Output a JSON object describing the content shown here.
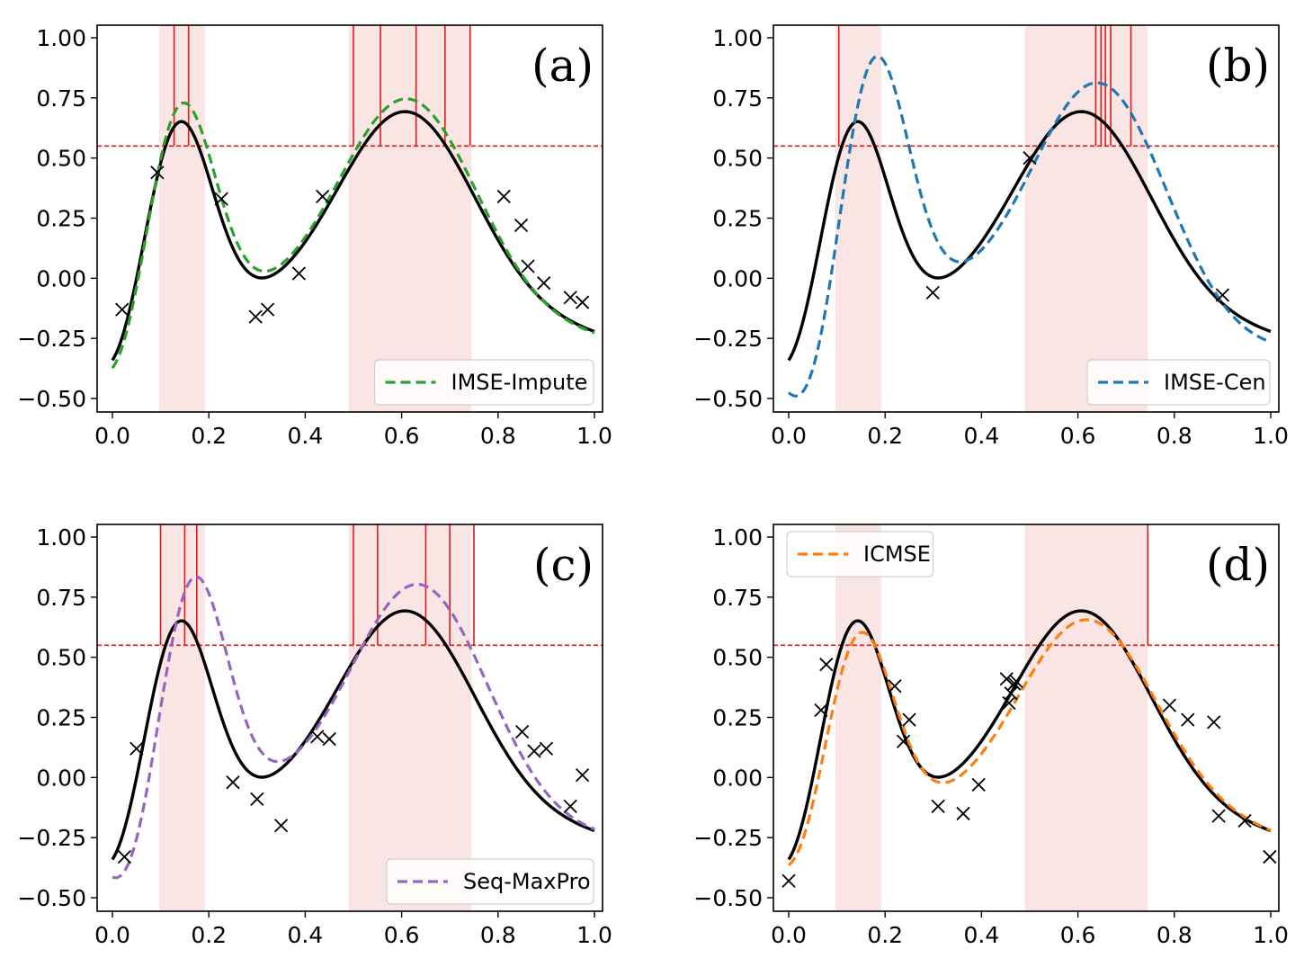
{
  "figure": {
    "threshold": 0.55,
    "threshold_color": "#e31a1c",
    "true_curve_color": "#000000",
    "band_color": "#f4c2c2",
    "marker_color": "#000000"
  },
  "chart_data": [
    {
      "type": "line",
      "panel_label": "(a)",
      "legend": "IMSE-Impute",
      "legend_position": "bottom-right",
      "color": "#2ca02c",
      "xlim": [
        0,
        1
      ],
      "ylim": [
        -0.55,
        1.05
      ],
      "x_ticks": [
        "0.0",
        "0.2",
        "0.4",
        "0.6",
        "0.8",
        "1.0"
      ],
      "y_ticks": [
        "1.00",
        "0.75",
        "0.50",
        "0.25",
        "0.00",
        "−0.25",
        "−0.50"
      ],
      "excursion_bands": [
        [
          0.097,
          0.192
        ],
        [
          0.49,
          0.745
        ]
      ],
      "threshold": 0.55,
      "vertical_lines": [
        0.128,
        0.158,
        0.5,
        0.556,
        0.63,
        0.69,
        0.742
      ],
      "observations": [
        [
          0.02,
          -0.13
        ],
        [
          0.093,
          0.44
        ],
        [
          0.226,
          0.33
        ],
        [
          0.297,
          -0.16
        ],
        [
          0.322,
          -0.13
        ],
        [
          0.387,
          0.02
        ],
        [
          0.436,
          0.34
        ],
        [
          0.812,
          0.34
        ],
        [
          0.848,
          0.22
        ],
        [
          0.862,
          0.05
        ],
        [
          0.895,
          -0.02
        ],
        [
          0.95,
          -0.08
        ],
        [
          0.975,
          -0.1
        ]
      ],
      "surrogate_params": {
        "scale": 1.08,
        "shift": 0.005,
        "offset": 0.0,
        "tilt": 0.11
      }
    },
    {
      "type": "line",
      "panel_label": "(b)",
      "legend": "IMSE-Cen",
      "legend_position": "bottom-right",
      "color": "#1f77b4",
      "xlim": [
        0,
        1
      ],
      "ylim": [
        -0.55,
        1.05
      ],
      "x_ticks": [
        "0.0",
        "0.2",
        "0.4",
        "0.6",
        "0.8",
        "1.0"
      ],
      "y_ticks": [
        "1.00",
        "0.75",
        "0.50",
        "0.25",
        "0.00",
        "−0.25",
        "−0.50"
      ],
      "excursion_bands": [
        [
          0.097,
          0.192
        ],
        [
          0.49,
          0.745
        ]
      ],
      "threshold": 0.55,
      "vertical_lines": [
        0.104,
        0.637,
        0.648,
        0.657,
        0.668,
        0.71
      ],
      "observations": [
        [
          0.299,
          -0.06
        ],
        [
          0.5,
          0.5
        ],
        [
          0.9,
          -0.07
        ]
      ],
      "surrogate_params": {
        "scale": 1.3,
        "shift": 0.04,
        "offset": -0.05,
        "tilt": 0.55
      }
    },
    {
      "type": "line",
      "panel_label": "(c)",
      "legend": "Seq-MaxPro",
      "legend_position": "bottom-right",
      "color": "#9467bd",
      "xlim": [
        0,
        1
      ],
      "ylim": [
        -0.55,
        1.05
      ],
      "x_ticks": [
        "0.0",
        "0.2",
        "0.4",
        "0.6",
        "0.8",
        "1.0"
      ],
      "y_ticks": [
        "1.00",
        "0.75",
        "0.50",
        "0.25",
        "0.00",
        "−0.25",
        "−0.50"
      ],
      "excursion_bands": [
        [
          0.097,
          0.192
        ],
        [
          0.49,
          0.745
        ]
      ],
      "threshold": 0.55,
      "vertical_lines": [
        0.1,
        0.15,
        0.175,
        0.5,
        0.55,
        0.65,
        0.7,
        0.75
      ],
      "observations": [
        [
          0.025,
          -0.33
        ],
        [
          0.05,
          0.12
        ],
        [
          0.25,
          -0.02
        ],
        [
          0.3,
          -0.09
        ],
        [
          0.35,
          -0.2
        ],
        [
          0.425,
          0.17
        ],
        [
          0.45,
          0.16
        ],
        [
          0.85,
          0.19
        ],
        [
          0.875,
          0.11
        ],
        [
          0.9,
          0.12
        ],
        [
          0.95,
          -0.12
        ],
        [
          0.975,
          0.01
        ]
      ],
      "surrogate_params": {
        "scale": 1.18,
        "shift": 0.03,
        "offset": 0.0,
        "tilt": 0.28
      }
    },
    {
      "type": "line",
      "panel_label": "(d)",
      "legend": "ICMSE",
      "legend_position": "top-left",
      "color": "#ff7f0e",
      "xlim": [
        0,
        1
      ],
      "ylim": [
        -0.55,
        1.05
      ],
      "x_ticks": [
        "0.0",
        "0.2",
        "0.4",
        "0.6",
        "0.8",
        "1.0"
      ],
      "y_ticks": [
        "1.00",
        "0.75",
        "0.50",
        "0.25",
        "0.00",
        "−0.25",
        "−0.50"
      ],
      "excursion_bands": [
        [
          0.097,
          0.192
        ],
        [
          0.49,
          0.745
        ]
      ],
      "threshold": 0.55,
      "vertical_lines": [
        0.745
      ],
      "observations": [
        [
          0.0,
          -0.43
        ],
        [
          0.067,
          0.28
        ],
        [
          0.078,
          0.47
        ],
        [
          0.22,
          0.38
        ],
        [
          0.238,
          0.15
        ],
        [
          0.25,
          0.24
        ],
        [
          0.31,
          -0.12
        ],
        [
          0.362,
          -0.15
        ],
        [
          0.394,
          -0.03
        ],
        [
          0.452,
          0.41
        ],
        [
          0.457,
          0.31
        ],
        [
          0.461,
          0.35
        ],
        [
          0.468,
          0.39
        ],
        [
          0.472,
          0.4
        ],
        [
          0.79,
          0.3
        ],
        [
          0.828,
          0.24
        ],
        [
          0.882,
          0.23
        ],
        [
          0.892,
          -0.16
        ],
        [
          0.946,
          -0.18
        ],
        [
          0.998,
          -0.33
        ]
      ],
      "surrogate_params": {
        "scale": 0.96,
        "shift": 0.01,
        "offset": -0.01,
        "tilt": -0.05
      }
    }
  ]
}
